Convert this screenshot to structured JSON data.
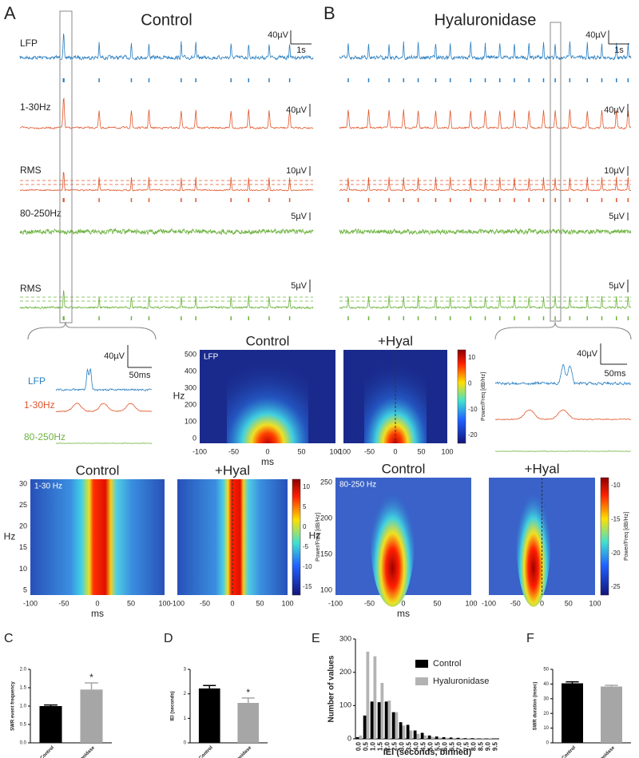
{
  "figure": {
    "panel_a": {
      "label": "A",
      "title": "Control",
      "traces": [
        "LFP",
        "1-30Hz",
        "RMS",
        "80-250Hz",
        "RMS"
      ],
      "scales": [
        "40µV",
        "1s",
        "40µV",
        "10µV",
        "5µV",
        "5µV"
      ]
    },
    "panel_b": {
      "label": "B",
      "title": "Hyaluronidase",
      "scales": [
        "40µV",
        "1s",
        "40µV",
        "10µV",
        "5µV",
        "5µV"
      ]
    },
    "inset_left": {
      "traces": [
        "LFP",
        "1-30Hz",
        "80-250Hz"
      ],
      "scales": [
        "40µV",
        "50ms"
      ]
    },
    "inset_right": {
      "scales": [
        "40µV",
        "50ms"
      ]
    },
    "spectrograms": [
      {
        "band": "LFP",
        "titles": [
          "Control",
          "+Hyal"
        ],
        "ylabel": "Hz",
        "yticks": [
          "0",
          "100",
          "200",
          "300",
          "400",
          "500"
        ],
        "xlabel": "ms",
        "xticks": [
          "-100",
          "-50",
          "0",
          "50",
          "100"
        ],
        "colorbar_ticks": [
          "10",
          "0",
          "-10",
          "-20"
        ],
        "colorbar_label": "Power/Freq [dB/Hz]"
      },
      {
        "band": "1-30 Hz",
        "titles": [
          "Control",
          "+Hyal"
        ],
        "ylabel": "Hz",
        "yticks": [
          "5",
          "10",
          "15",
          "20",
          "25",
          "30"
        ],
        "xlabel": "ms",
        "xticks": [
          "-100",
          "-50",
          "0",
          "50",
          "100"
        ],
        "colorbar_ticks": [
          "10",
          "5",
          "0",
          "-5",
          "-10",
          "-15"
        ],
        "colorbar_label": "Power/Freq [dB/Hz]"
      },
      {
        "band": "80-250 Hz",
        "titles": [
          "Control",
          "+Hyal"
        ],
        "ylabel": "Hz",
        "yticks": [
          "100",
          "150",
          "200",
          "250"
        ],
        "xlabel": "ms",
        "xticks": [
          "-100",
          "-50",
          "0",
          "50",
          "100"
        ],
        "colorbar_ticks": [
          "-10",
          "-15",
          "-20",
          "-25"
        ],
        "colorbar_label": "Power/Freq [dB/Hz]"
      }
    ]
  },
  "chart_data": [
    {
      "type": "bar",
      "panel": "C",
      "ylabel": "SWR event frequency",
      "categories": [
        "Control",
        "Hyaluronidase"
      ],
      "values": [
        1.0,
        1.45
      ],
      "errors": [
        0.03,
        0.18
      ],
      "colors": [
        "#000000",
        "#a6a6a6"
      ],
      "significance": [
        null,
        "*"
      ],
      "ylim": [
        0,
        2
      ],
      "yticks": [
        {
          "value": 0,
          "label": "0.0"
        },
        {
          "value": 0.5,
          "label": "0.5"
        },
        {
          "value": 1,
          "label": "1.0"
        },
        {
          "value": 1.5,
          "label": "1.5"
        },
        {
          "value": 2,
          "label": "2.0"
        }
      ]
    },
    {
      "type": "bar",
      "panel": "D",
      "ylabel": "IEI (seconds)",
      "categories": [
        "Control",
        "Hyaluronidase"
      ],
      "values": [
        2.22,
        1.63
      ],
      "errors": [
        0.12,
        0.2
      ],
      "colors": [
        "#000000",
        "#a6a6a6"
      ],
      "significance": [
        null,
        "*"
      ],
      "ylim": [
        0,
        3
      ],
      "yticks": [
        0,
        1,
        2,
        3
      ]
    },
    {
      "type": "bar",
      "panel": "E",
      "ylabel": "Number of values",
      "xlabel": "IEI (seconds, binned)",
      "categories": [
        "0.0",
        "0.5",
        "1.0",
        "1.5",
        "2.0",
        "2.5",
        "3.0",
        "3.5",
        "4.0",
        "4.5",
        "5.0",
        "5.5",
        "6.0",
        "6.5",
        "7.0",
        "7.5",
        "8.0",
        "8.5",
        "9.0",
        "9.5"
      ],
      "series": [
        {
          "name": "Control",
          "color": "#000000",
          "values": [
            5,
            70,
            112,
            110,
            112,
            80,
            50,
            42,
            25,
            18,
            10,
            7,
            5,
            4,
            3,
            2,
            2,
            1,
            1,
            1
          ]
        },
        {
          "name": "Hyaluronidase",
          "color": "#b3b3b3",
          "values": [
            10,
            262,
            248,
            168,
            115,
            80,
            40,
            25,
            15,
            10,
            6,
            4,
            3,
            2,
            2,
            1,
            1,
            1,
            1,
            0
          ]
        }
      ],
      "ylim": [
        0,
        300
      ],
      "yticks": [
        0,
        100,
        200,
        300
      ]
    },
    {
      "type": "bar",
      "panel": "F",
      "ylabel": "SWR duration (msec)",
      "categories": [
        "Control",
        "Hyaluronidase"
      ],
      "values": [
        40.5,
        38.3
      ],
      "errors": [
        1.0,
        0.8
      ],
      "colors": [
        "#000000",
        "#a6a6a6"
      ],
      "ylim": [
        0,
        50
      ],
      "yticks": [
        0,
        10,
        20,
        30,
        40,
        50
      ]
    }
  ]
}
